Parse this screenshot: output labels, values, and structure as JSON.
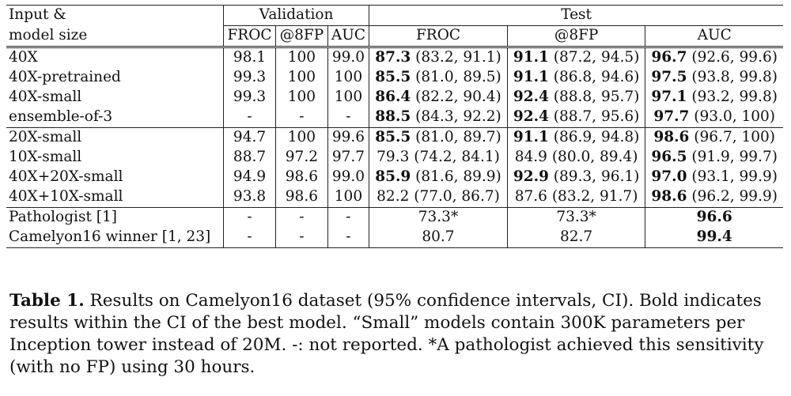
{
  "header": {
    "input_line1": "Input &",
    "input_line2": "model size",
    "validation": "Validation",
    "test": "Test",
    "val_cols": [
      "FROC",
      "@8FP",
      "AUC"
    ],
    "test_cols": [
      "FROC",
      "@8FP",
      "AUC"
    ]
  },
  "rows": [
    {
      "name": "40X",
      "val": [
        "98.1",
        "100",
        "99.0"
      ],
      "test": [
        {
          "v": "87.3",
          "ci": " (83.2, 91.1)",
          "bold": true
        },
        {
          "v": "91.1",
          "ci": " (87.2, 94.5)",
          "bold": true
        },
        {
          "v": "96.7",
          "ci": " (92.6, 99.6)",
          "bold": true
        }
      ]
    },
    {
      "name": "40X-pretrained",
      "val": [
        "99.3",
        "100",
        "100"
      ],
      "test": [
        {
          "v": "85.5",
          "ci": " (81.0, 89.5)",
          "bold": true
        },
        {
          "v": "91.1",
          "ci": " (86.8, 94.6)",
          "bold": true
        },
        {
          "v": "97.5",
          "ci": " (93.8, 99.8)",
          "bold": true
        }
      ]
    },
    {
      "name": "40X-small",
      "val": [
        "99.3",
        "100",
        "100"
      ],
      "test": [
        {
          "v": "86.4",
          "ci": " (82.2, 90.4)",
          "bold": true
        },
        {
          "v": "92.4",
          "ci": " (88.8, 95.7)",
          "bold": true
        },
        {
          "v": "97.1",
          "ci": " (93.2, 99.8)",
          "bold": true
        }
      ]
    },
    {
      "name": "ensemble-of-3",
      "val": [
        "-",
        "-",
        "-"
      ],
      "test": [
        {
          "v": "88.5",
          "ci": " (84.3, 92.2)",
          "bold": true
        },
        {
          "v": "92.4",
          "ci": " (88.7, 95.6)",
          "bold": true
        },
        {
          "v": "97.7",
          "ci": " (93.0, 100)",
          "bold": true
        }
      ]
    },
    {
      "name": "20X-small",
      "val": [
        "94.7",
        "100",
        "99.6"
      ],
      "test": [
        {
          "v": "85.5",
          "ci": " (81.0, 89.7)",
          "bold": true
        },
        {
          "v": "91.1",
          "ci": " (86.9, 94.8)",
          "bold": true
        },
        {
          "v": "98.6",
          "ci": " (96.7, 100)",
          "bold": true
        }
      ]
    },
    {
      "name": "10X-small",
      "val": [
        "88.7",
        "97.2",
        "97.7"
      ],
      "test": [
        {
          "v": "79.3",
          "ci": " (74.2, 84.1)",
          "bold": false
        },
        {
          "v": "84.9",
          "ci": " (80.0, 89.4)",
          "bold": false
        },
        {
          "v": "96.5",
          "ci": " (91.9, 99.7)",
          "bold": true
        }
      ]
    },
    {
      "name": "40X+20X-small",
      "val": [
        "94.9",
        "98.6",
        "99.0"
      ],
      "test": [
        {
          "v": "85.9",
          "ci": " (81.6, 89.9)",
          "bold": true
        },
        {
          "v": "92.9",
          "ci": " (89.3, 96.1)",
          "bold": true
        },
        {
          "v": "97.0",
          "ci": " (93.1, 99.9)",
          "bold": true
        }
      ]
    },
    {
      "name": "40X+10X-small",
      "val": [
        "93.8",
        "98.6",
        "100"
      ],
      "test": [
        {
          "v": "82.2",
          "ci": " (77.0, 86.7)",
          "bold": false
        },
        {
          "v": "87.6",
          "ci": " (83.2, 91.7)",
          "bold": false
        },
        {
          "v": "98.6",
          "ci": " (96.2, 99.9)",
          "bold": true
        }
      ]
    },
    {
      "name": "Pathologist [1]",
      "val": [
        "-",
        "-",
        "-"
      ],
      "test": [
        {
          "v": "73.3*",
          "ci": "",
          "bold": false
        },
        {
          "v": "73.3*",
          "ci": "",
          "bold": false
        },
        {
          "v": "96.6",
          "ci": "",
          "bold": true
        }
      ]
    },
    {
      "name": "Camelyon16 winner [1, 23]",
      "val": [
        "-",
        "-",
        "-"
      ],
      "test": [
        {
          "v": "80.7",
          "ci": "",
          "bold": false
        },
        {
          "v": "82.7",
          "ci": "",
          "bold": false
        },
        {
          "v": "99.4",
          "ci": "",
          "bold": true
        }
      ]
    }
  ],
  "caption": {
    "label": "Table 1.",
    "text": " Results on Camelyon16 dataset (95% confidence intervals, CI). Bold indicates results within the CI of the best model. “Small” models contain 300K parameters per Inception tower instead of 20M. -: not reported. *A pathologist achieved this sensitivity (with no FP) using 30 hours."
  }
}
